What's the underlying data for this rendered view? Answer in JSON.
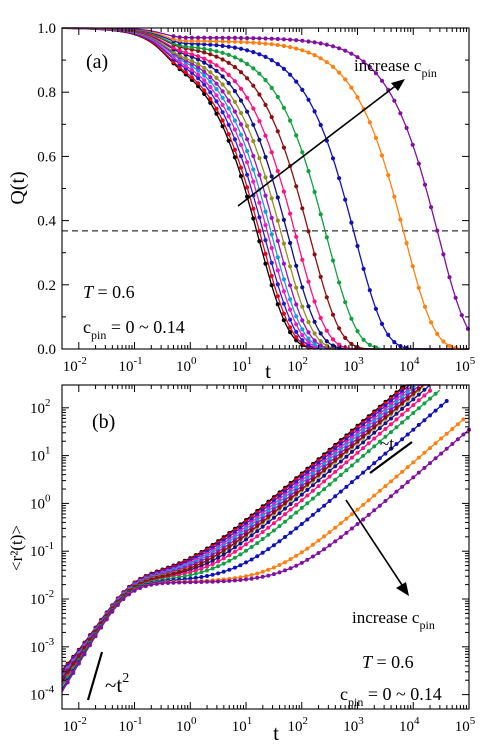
{
  "chart_data": [
    {
      "type": "line",
      "panel_label": "(a)",
      "xlabel": "t",
      "ylabel": "Q(t)",
      "xscale": "log",
      "xlim": [
        0.005,
        100000
      ],
      "ylim": [
        0,
        1.0
      ],
      "x_ticks": [
        {
          "value": 0.01,
          "mant": "10",
          "exp": "-2"
        },
        {
          "value": 0.1,
          "mant": "10",
          "exp": "-1"
        },
        {
          "value": 1,
          "mant": "10",
          "exp": "0"
        },
        {
          "value": 10,
          "mant": "10",
          "exp": "1"
        },
        {
          "value": 100,
          "mant": "10",
          "exp": "2"
        },
        {
          "value": 1000,
          "mant": "10",
          "exp": "3"
        },
        {
          "value": 10000,
          "mant": "10",
          "exp": "4"
        },
        {
          "value": 100000,
          "mant": "10",
          "exp": "5"
        }
      ],
      "y_ticks": [
        {
          "value": 0.0,
          "label": "0.0"
        },
        {
          "value": 0.2,
          "label": "0.2"
        },
        {
          "value": 0.4,
          "label": "0.4"
        },
        {
          "value": 0.6,
          "label": "0.6"
        },
        {
          "value": 0.8,
          "label": "0.8"
        },
        {
          "value": 1.0,
          "label": "1.0"
        }
      ],
      "reference_line": {
        "y": 0.368,
        "style": "dashed"
      },
      "annotations": {
        "temperature_label": "T",
        "temperature_value": " = 0.6",
        "cpin_label": "c",
        "cpin_sub": "pin",
        "cpin_range": " = 0 ~ 0.14",
        "arrow_text": "increase c",
        "arrow_sub": "pin"
      },
      "series": [
        {
          "color": "#000000",
          "tau": 17,
          "plateau": 0.93,
          "tmax": 100000
        },
        {
          "color": "#e8001c",
          "tau": 19,
          "plateau": 0.93,
          "tmax": 100000
        },
        {
          "color": "#2020d0",
          "tau": 22,
          "plateau": 0.935,
          "tmax": 100000
        },
        {
          "color": "#e81cc8",
          "tau": 26,
          "plateau": 0.935,
          "tmax": 100000
        },
        {
          "color": "#10a0d8",
          "tau": 30,
          "plateau": 0.94,
          "tmax": 100000
        },
        {
          "color": "#a010c0",
          "tau": 36,
          "plateau": 0.94,
          "tmax": 100000
        },
        {
          "color": "#909020",
          "tau": 45,
          "plateau": 0.94,
          "tmax": 100000
        },
        {
          "color": "#101088",
          "tau": 58,
          "plateau": 0.945,
          "tmax": 100000
        },
        {
          "color": "#ff1080",
          "tau": 80,
          "plateau": 0.945,
          "tmax": 100000
        },
        {
          "color": "#8a1010",
          "tau": 140,
          "plateau": 0.95,
          "tmax": 100000
        },
        {
          "color": "#10a040",
          "tau": 280,
          "plateau": 0.95,
          "tmax": 100000
        },
        {
          "color": "#1010b8",
          "tau": 900,
          "plateau": 0.955,
          "tmax": 100000
        },
        {
          "color": "#ff8010",
          "tau": 7000,
          "plateau": 0.96,
          "tmax": 100000
        },
        {
          "color": "#8010a0",
          "tau": 28000,
          "plateau": 0.97,
          "tmax": 100000
        }
      ]
    },
    {
      "type": "line",
      "panel_label": "(b)",
      "xlabel": "t",
      "ylabel": "<r²(t)>",
      "xscale": "log",
      "yscale": "log",
      "xlim": [
        0.005,
        100000
      ],
      "ylim": [
        5e-05,
        300
      ],
      "x_ticks": [
        {
          "value": 0.01,
          "mant": "10",
          "exp": "-2"
        },
        {
          "value": 0.1,
          "mant": "10",
          "exp": "-1"
        },
        {
          "value": 1,
          "mant": "10",
          "exp": "0"
        },
        {
          "value": 10,
          "mant": "10",
          "exp": "1"
        },
        {
          "value": 100,
          "mant": "10",
          "exp": "2"
        },
        {
          "value": 1000,
          "mant": "10",
          "exp": "3"
        },
        {
          "value": 10000,
          "mant": "10",
          "exp": "4"
        },
        {
          "value": 100000,
          "mant": "10",
          "exp": "5"
        }
      ],
      "y_ticks": [
        {
          "value": 0.0001,
          "mant": "10",
          "exp": "-4"
        },
        {
          "value": 0.001,
          "mant": "10",
          "exp": "-3"
        },
        {
          "value": 0.01,
          "mant": "10",
          "exp": "-2"
        },
        {
          "value": 0.1,
          "mant": "10",
          "exp": "-1"
        },
        {
          "value": 1,
          "mant": "10",
          "exp": "0"
        },
        {
          "value": 10,
          "mant": "10",
          "exp": "1"
        },
        {
          "value": 100,
          "mant": "10",
          "exp": "2"
        }
      ],
      "annotations": {
        "slope_long_time": "~t",
        "slope_short_time": "~t",
        "slope_short_exp": "2",
        "temperature_label": "T",
        "temperature_value": " = 0.6",
        "cpin_label": "c",
        "cpin_sub": "pin",
        "cpin_range": " = 0 ~ 0.14",
        "arrow_text": "increase c",
        "arrow_sub": "pin"
      },
      "series": [
        {
          "color": "#000000",
          "D": 0.007,
          "tmax": 20000
        },
        {
          "color": "#e8001c",
          "D": 0.0065,
          "tmax": 20000
        },
        {
          "color": "#2020d0",
          "D": 0.0058,
          "tmax": 20000
        },
        {
          "color": "#e81cc8",
          "D": 0.005,
          "tmax": 20000
        },
        {
          "color": "#10a0d8",
          "D": 0.0044,
          "tmax": 20000
        },
        {
          "color": "#a010c0",
          "D": 0.0038,
          "tmax": 20000
        },
        {
          "color": "#909020",
          "D": 0.0031,
          "tmax": 20000
        },
        {
          "color": "#101088",
          "D": 0.0025,
          "tmax": 20000
        },
        {
          "color": "#ff1080",
          "D": 0.0019,
          "tmax": 20000
        },
        {
          "color": "#8a1010",
          "D": 0.0033,
          "tmax": 30000
        },
        {
          "color": "#10a040",
          "D": 0.0013,
          "tmax": 30000
        },
        {
          "color": "#1010b8",
          "D": 0.00058,
          "tmax": 40000
        },
        {
          "color": "#ff8010",
          "D": 0.00012,
          "tmax": 80000
        },
        {
          "color": "#8010a0",
          "D": 5.8e-05,
          "tmax": 100000
        }
      ]
    }
  ]
}
